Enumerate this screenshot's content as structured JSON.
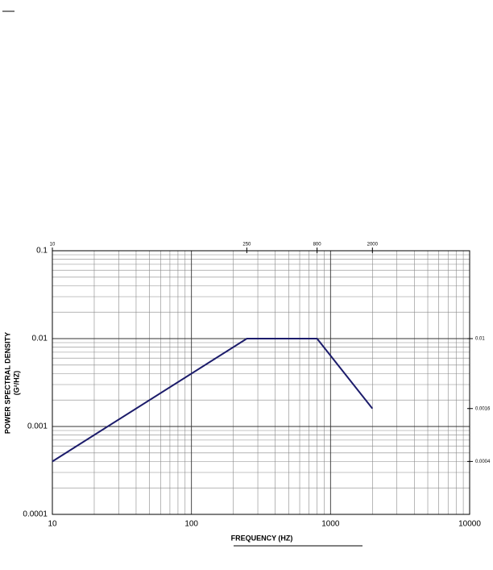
{
  "chart_data": {
    "type": "line",
    "xlabel": "FREQUENCY (HZ)",
    "ylabel": "POWER SPECTRAL DENSITY",
    "ylabel_unit": "(G²/HZ)",
    "x": [
      10,
      250,
      800,
      2000
    ],
    "series": [
      {
        "color": "#1c1c6b",
        "values": [
          0.0004,
          0.01,
          0.01,
          0.0016
        ]
      }
    ],
    "xlim": [
      10,
      10000
    ],
    "ylim": [
      0.0001,
      0.1
    ],
    "xticks": [
      10,
      100,
      1000,
      10000
    ],
    "yticks": [
      0.0001,
      0.001,
      0.01,
      0.1
    ],
    "xscale": "log",
    "yscale": "log",
    "grid": "minor",
    "top_ticks": [
      10,
      250,
      800,
      2000
    ],
    "right_ticks": [
      0.01,
      0.0016,
      0.0004
    ]
  }
}
